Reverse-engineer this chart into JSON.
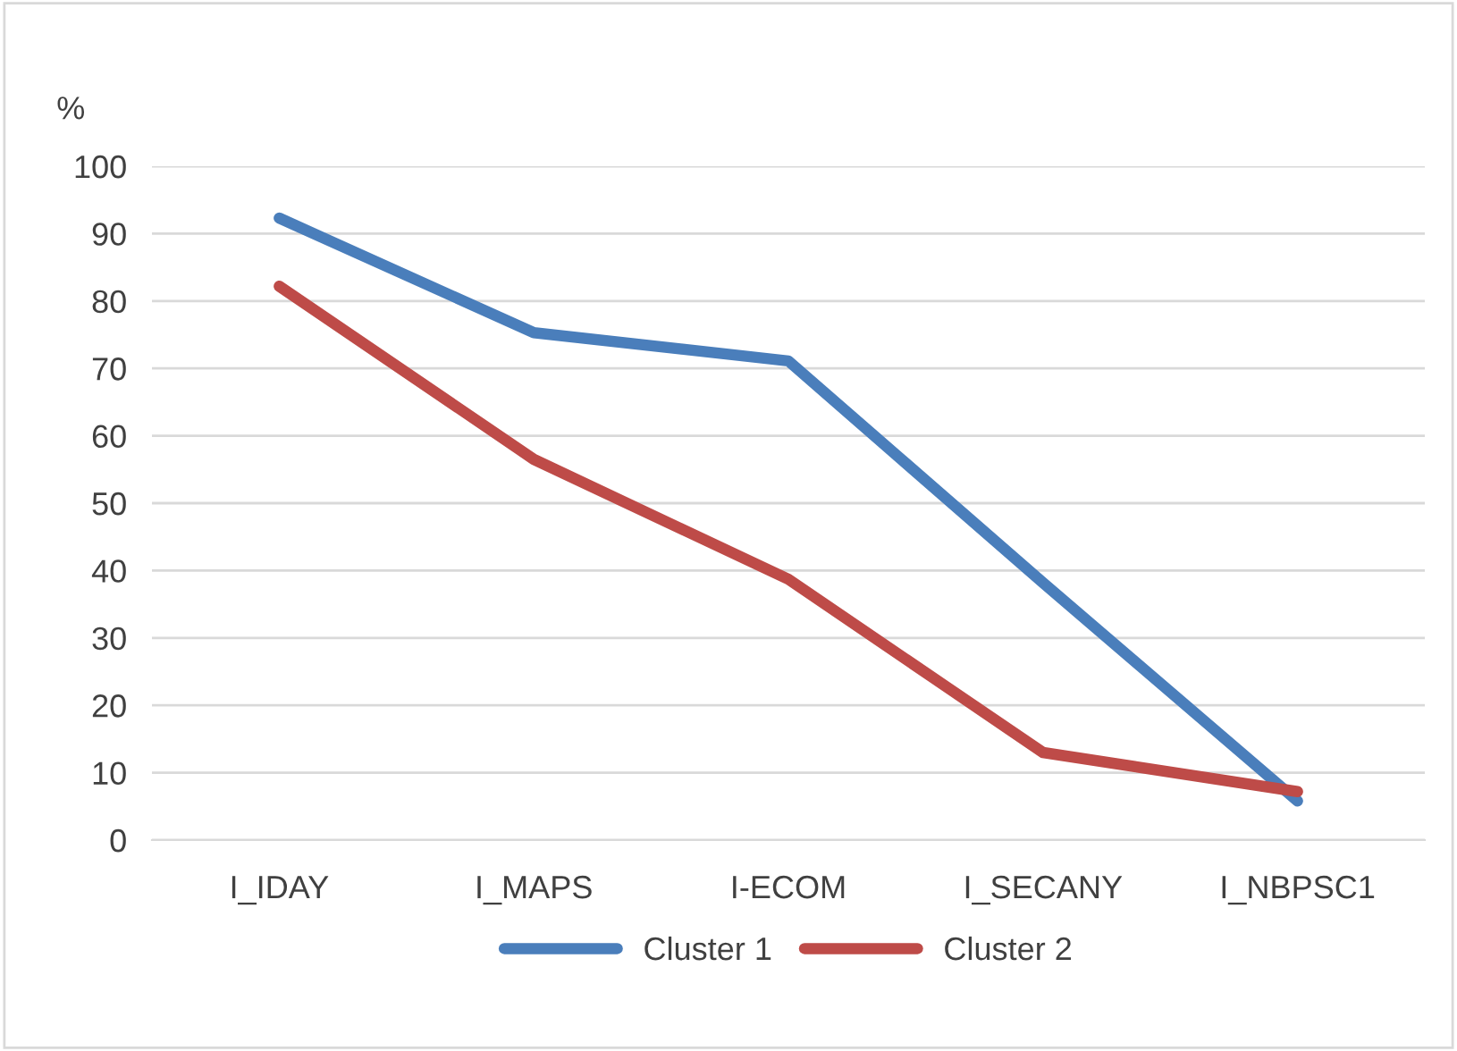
{
  "chart_data": {
    "type": "line",
    "ylabel": "%",
    "categories": [
      "I_IDAY",
      "I_MAPS",
      "I-ECOM",
      "I_SECANY",
      "I_NBPSC1"
    ],
    "series": [
      {
        "name": "Cluster 1",
        "color": "#4a7ebb",
        "values": [
          92.3,
          75.3,
          71.1,
          38.2,
          5.8
        ]
      },
      {
        "name": "Cluster 2",
        "color": "#be4b48",
        "values": [
          82.2,
          56.5,
          38.7,
          13.0,
          7.2
        ]
      }
    ],
    "ylim": [
      0,
      100
    ],
    "yticks": [
      0,
      10,
      20,
      30,
      40,
      50,
      60,
      70,
      80,
      90,
      100
    ],
    "grid": "y",
    "legend": "bottom",
    "marker": "none",
    "line_style": "solid"
  }
}
